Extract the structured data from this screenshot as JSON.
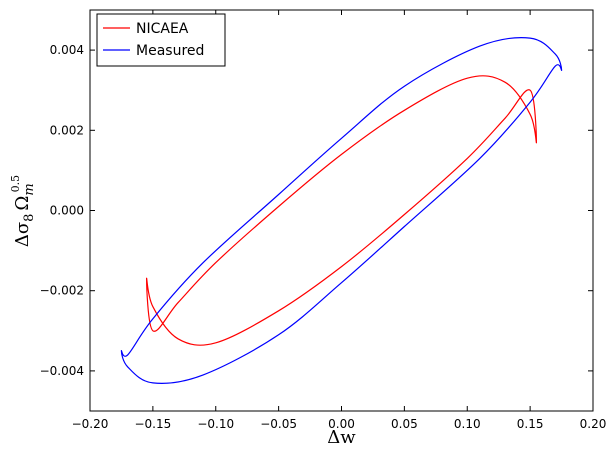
{
  "chart_data": {
    "type": "line",
    "title": "",
    "xlabel": "Δw",
    "ylabel_main": "Δσ",
    "ylabel_sub": "8",
    "ylabel_omega": "Ω",
    "ylabel_omega_sub": "m",
    "ylabel_omega_sup": "0.5",
    "xlim": [
      -0.2,
      0.2
    ],
    "ylim": [
      -0.005,
      0.005
    ],
    "xticks": [
      -0.2,
      -0.15,
      -0.1,
      -0.05,
      0.0,
      0.05,
      0.1,
      0.15,
      0.2
    ],
    "xtick_labels": [
      "−0.20",
      "−0.15",
      "−0.10",
      "−0.05",
      "0.00",
      "0.05",
      "0.10",
      "0.15",
      "0.20"
    ],
    "yticks": [
      -0.004,
      -0.002,
      0.0,
      0.002,
      0.004
    ],
    "ytick_labels": [
      "−0.004",
      "−0.002",
      "0.000",
      "0.002",
      "0.004"
    ],
    "grid": false,
    "legend_position": "top-left",
    "series": [
      {
        "name": "NICAEA",
        "color": "#ff0000",
        "shape": "ellipse",
        "x": [
          0.155,
          0.15,
          0.13,
          0.1,
          0.05,
          0.0,
          -0.05,
          -0.1,
          -0.13,
          -0.15,
          -0.155,
          -0.15,
          -0.13,
          -0.1,
          -0.05,
          0.0,
          0.05,
          0.1,
          0.13,
          0.15,
          0.155
        ],
        "y": [
          0.0017,
          0.0024,
          0.0032,
          0.0033,
          0.0025,
          0.0014,
          0.0001,
          -0.0013,
          -0.0023,
          -0.003,
          -0.0017,
          -0.0024,
          -0.0032,
          -0.0033,
          -0.0025,
          -0.0014,
          -0.0001,
          0.0013,
          0.0023,
          0.003,
          0.0017
        ]
      },
      {
        "name": "Measured",
        "color": "#0000ff",
        "shape": "ellipse",
        "x": [
          0.175,
          0.17,
          0.15,
          0.11,
          0.05,
          0.0,
          -0.05,
          -0.11,
          -0.15,
          -0.17,
          -0.175,
          -0.17,
          -0.15,
          -0.11,
          -0.05,
          0.0,
          0.05,
          0.11,
          0.15,
          0.17,
          0.175
        ],
        "y": [
          0.0035,
          0.0039,
          0.0043,
          0.0041,
          0.0031,
          0.0018,
          0.0004,
          -0.0013,
          -0.0027,
          -0.0036,
          -0.0035,
          -0.0039,
          -0.0043,
          -0.0041,
          -0.0031,
          -0.0018,
          -0.0004,
          0.0013,
          0.0027,
          0.0036,
          0.0035
        ]
      }
    ]
  }
}
